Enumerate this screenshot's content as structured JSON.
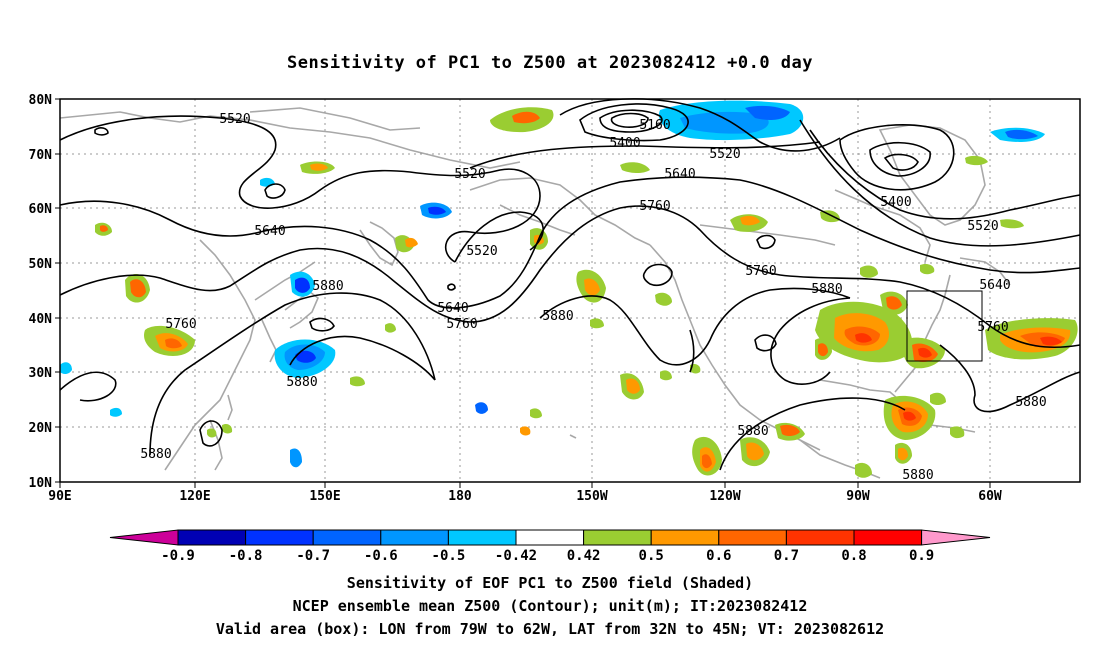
{
  "title": "Sensitivity of PC1 to Z500 at 2023082412 +0.0 day",
  "lat_ticks": [
    "80N",
    "70N",
    "60N",
    "50N",
    "40N",
    "30N",
    "20N",
    "10N"
  ],
  "lon_ticks": [
    "90E",
    "120E",
    "150E",
    "180",
    "150W",
    "120W",
    "90W",
    "60W"
  ],
  "contour_labels": [
    "5520",
    "5160",
    "5400",
    "5520",
    "5520",
    "5640",
    "5760",
    "5400",
    "5520",
    "5640",
    "5520",
    "5880",
    "5640",
    "5760",
    "5760",
    "5880",
    "5640",
    "5760",
    "5760",
    "5880",
    "5880",
    "5880",
    "5880",
    "5880",
    "5880"
  ],
  "colorbar": {
    "labels": [
      "-0.9",
      "-0.8",
      "-0.7",
      "-0.6",
      "-0.5",
      "-0.42",
      "0.42",
      "0.5",
      "0.6",
      "0.7",
      "0.8",
      "0.9"
    ],
    "colors": [
      "#0000b4",
      "#0032ff",
      "#0064ff",
      "#0096ff",
      "#00c8ff",
      "#ffffff",
      "#9acd32",
      "#ff9900",
      "#ff6600",
      "#ff3300",
      "#ff0000"
    ],
    "low_color": "#cc0099",
    "high_color": "#ff99cc"
  },
  "captions": [
    "Sensitivity of EOF PC1 to Z500 field (Shaded)",
    "NCEP ensemble mean Z500 (Contour); unit(m); IT:2023082412",
    "Valid area (box): LON from 79W to 62W, LAT from 32N to 45N; VT: 2023082612"
  ]
}
